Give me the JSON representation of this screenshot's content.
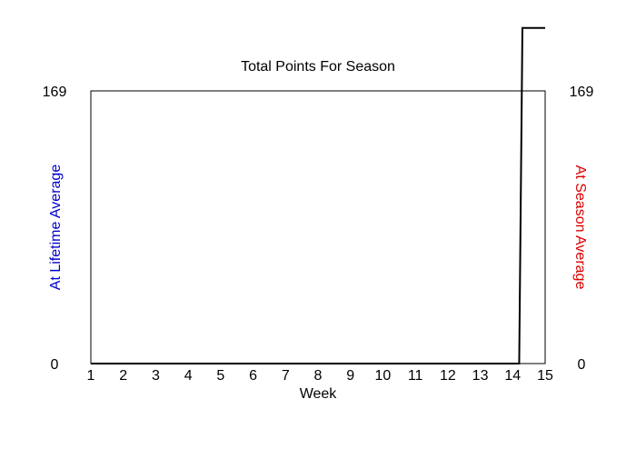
{
  "chart_data": {
    "type": "line",
    "title": "Total Points For Season",
    "xlabel": "Week",
    "ylabel_left": "At Lifetime Average",
    "ylabel_right": "At Season Average",
    "xlim": [
      1,
      15
    ],
    "ylim": [
      0,
      169
    ],
    "x_ticks": [
      "1",
      "2",
      "3",
      "4",
      "5",
      "6",
      "7",
      "8",
      "9",
      "10",
      "11",
      "12",
      "13",
      "14",
      "15"
    ],
    "y_ticks_left": [
      "0",
      "169"
    ],
    "y_ticks_right": [
      "0",
      "169"
    ],
    "grid": false,
    "series": [
      {
        "color": "#000000",
        "x": [
          1,
          14.2,
          14.3,
          15
        ],
        "y": [
          0,
          0,
          208,
          208
        ]
      }
    ],
    "colors": {
      "left_axis_label": "#0000cc",
      "right_axis_label": "#dd0000",
      "text": "#000000",
      "line": "#000000"
    }
  }
}
